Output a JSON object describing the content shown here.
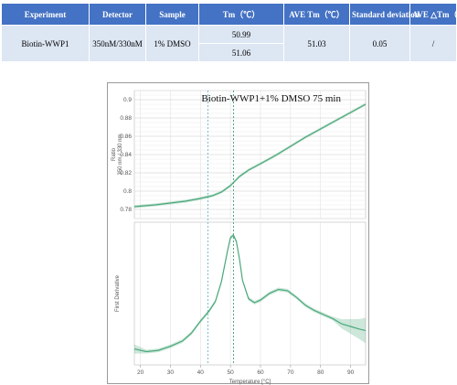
{
  "table": {
    "headers": [
      "Experiment",
      "Detector",
      "Sample",
      "Tm（℃）",
      "AVE Tm（℃）",
      "Standard deviation",
      "AVE △Tm（℃）"
    ],
    "row": {
      "experiment": "Biotin-WWP1",
      "detector": "350nM/330nM",
      "sample": "1% DMSO",
      "tm_values": [
        "50.99",
        "51.06"
      ],
      "ave_tm": "51.03",
      "std_dev": "0.05",
      "ave_delta_tm": "/"
    }
  },
  "chart_data": [
    {
      "type": "line",
      "title": "Biotin-WWP1+1% DMSO 75 min",
      "ylabel": "Ratio\n350 nm / 330 nm",
      "xlim": [
        18,
        95
      ],
      "ylim": [
        0.77,
        0.91
      ],
      "yticks": [
        "0.78",
        "0.8",
        "0.82",
        "0.84",
        "0.86",
        "0.88",
        "0.9"
      ],
      "vlines": [
        42.5,
        51.0
      ],
      "grid": true,
      "series": [
        {
          "color": "#4aa87a",
          "x": [
            18,
            25,
            30,
            35,
            40,
            44,
            47,
            50,
            53,
            56,
            60,
            65,
            70,
            75,
            80,
            85,
            90,
            95
          ],
          "y": [
            0.783,
            0.785,
            0.787,
            0.789,
            0.792,
            0.795,
            0.799,
            0.806,
            0.816,
            0.823,
            0.83,
            0.839,
            0.849,
            0.859,
            0.868,
            0.877,
            0.886,
            0.895
          ]
        }
      ]
    },
    {
      "type": "line",
      "ylabel": "First Derivative",
      "xlabel": "Temperature [°C]",
      "xlim": [
        18,
        95
      ],
      "xticks": [
        "20",
        "30",
        "40",
        "50",
        "60",
        "70",
        "80",
        "90"
      ],
      "vlines": [
        42.5,
        51.0
      ],
      "grid": true,
      "series": [
        {
          "color": "#4aa87a",
          "x": [
            18,
            22,
            26,
            30,
            34,
            37,
            40,
            43,
            45,
            47,
            49,
            50,
            51,
            52,
            53,
            54,
            56,
            58,
            60,
            63,
            66,
            69,
            72,
            75,
            78,
            81,
            84,
            87,
            90,
            93,
            95
          ],
          "y": [
            0.12,
            0.1,
            0.11,
            0.14,
            0.18,
            0.24,
            0.33,
            0.41,
            0.48,
            0.63,
            0.86,
            0.96,
            0.98,
            0.93,
            0.8,
            0.64,
            0.5,
            0.47,
            0.49,
            0.54,
            0.57,
            0.56,
            0.51,
            0.45,
            0.41,
            0.38,
            0.35,
            0.31,
            0.29,
            0.27,
            0.26
          ]
        }
      ]
    }
  ]
}
